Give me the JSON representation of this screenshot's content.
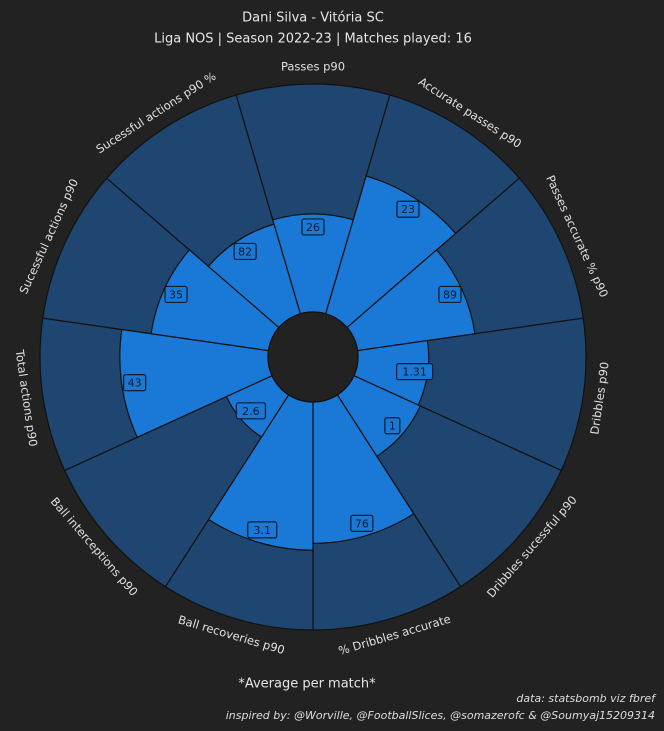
{
  "chart_data": {
    "type": "pizza",
    "title": "Dani Silva - Vitória SC",
    "subtitle": "Liga NOS | Season 2022-23 | Matches played: 16",
    "categories": [
      "Passes p90",
      "Accurate passes p90",
      "Passes accurate % p90",
      "Dribbles p90",
      "Dribbles sucessful p90",
      "% Dribbles accurate",
      "Ball recoveries p90",
      "Ball interceptions p90",
      "Total actions p90",
      "Sucessful actions p90",
      "Sucessful actions p90 %"
    ],
    "values": [
      26,
      23,
      89,
      1.31,
      1,
      76,
      3.1,
      2.6,
      43,
      35,
      82
    ],
    "percentiles": [
      43,
      63,
      52,
      31,
      32,
      62,
      65,
      22,
      65,
      52,
      41
    ],
    "rlim": [
      0,
      100
    ],
    "color": "#1a78d6",
    "background_color": "#1f4670",
    "footnote": "*Average per match*",
    "credits": [
      "data: statsbomb viz fbref",
      "inspired by: @Worville, @FootballSlices, @somazerofc & @Soumyaj15209314"
    ]
  }
}
